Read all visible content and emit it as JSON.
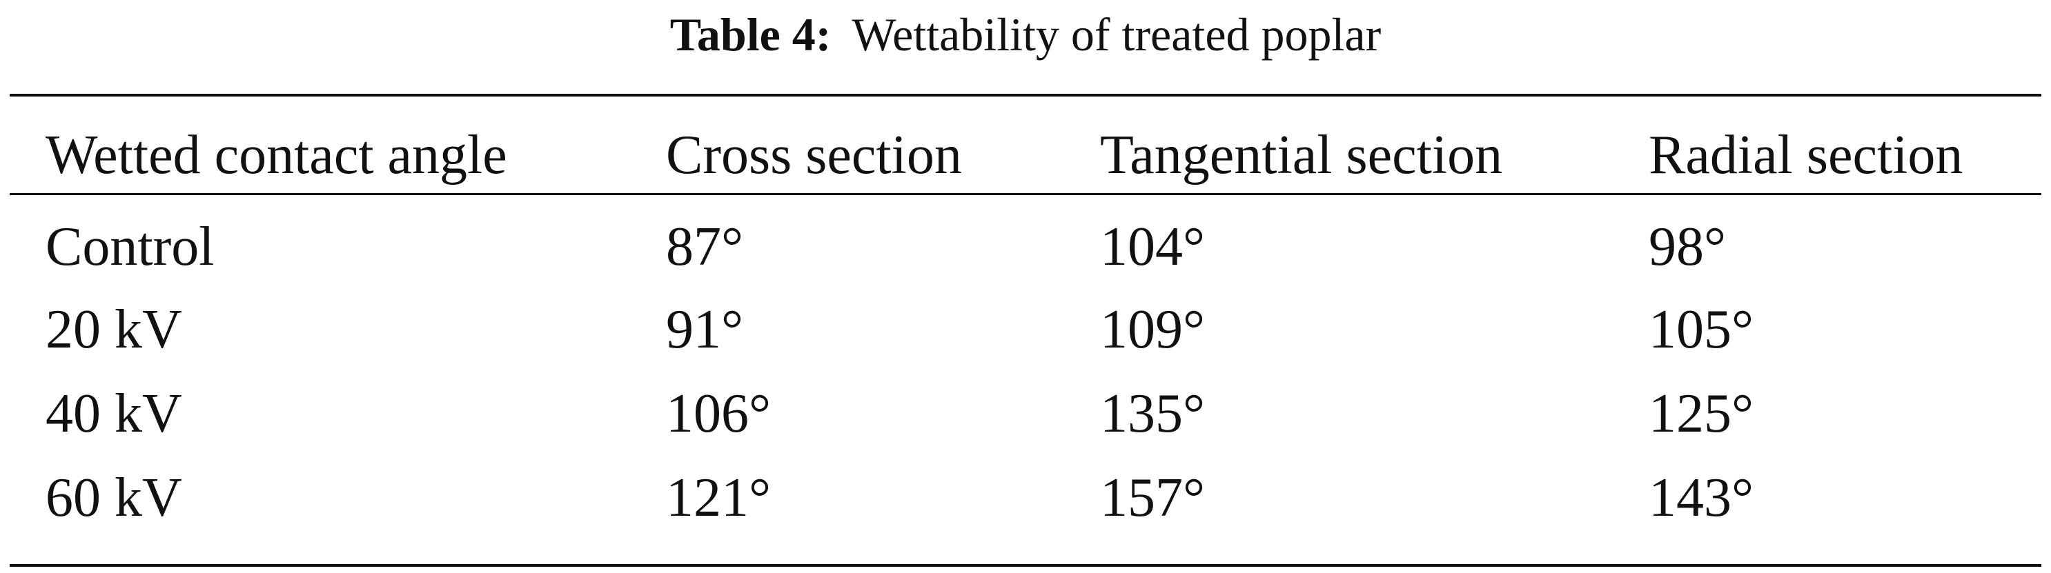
{
  "caption": {
    "label": "Table 4:",
    "title": "Wettability of treated poplar"
  },
  "table": {
    "headers": [
      "Wetted contact angle",
      "Cross section",
      "Tangential section",
      "Radial section"
    ],
    "rows": [
      [
        "Control",
        "87°",
        "104°",
        "98°"
      ],
      [
        "20 kV",
        "91°",
        "109°",
        "105°"
      ],
      [
        "40 kV",
        "106°",
        "135°",
        "125°"
      ],
      [
        "60 kV",
        "121°",
        "157°",
        "143°"
      ]
    ]
  }
}
